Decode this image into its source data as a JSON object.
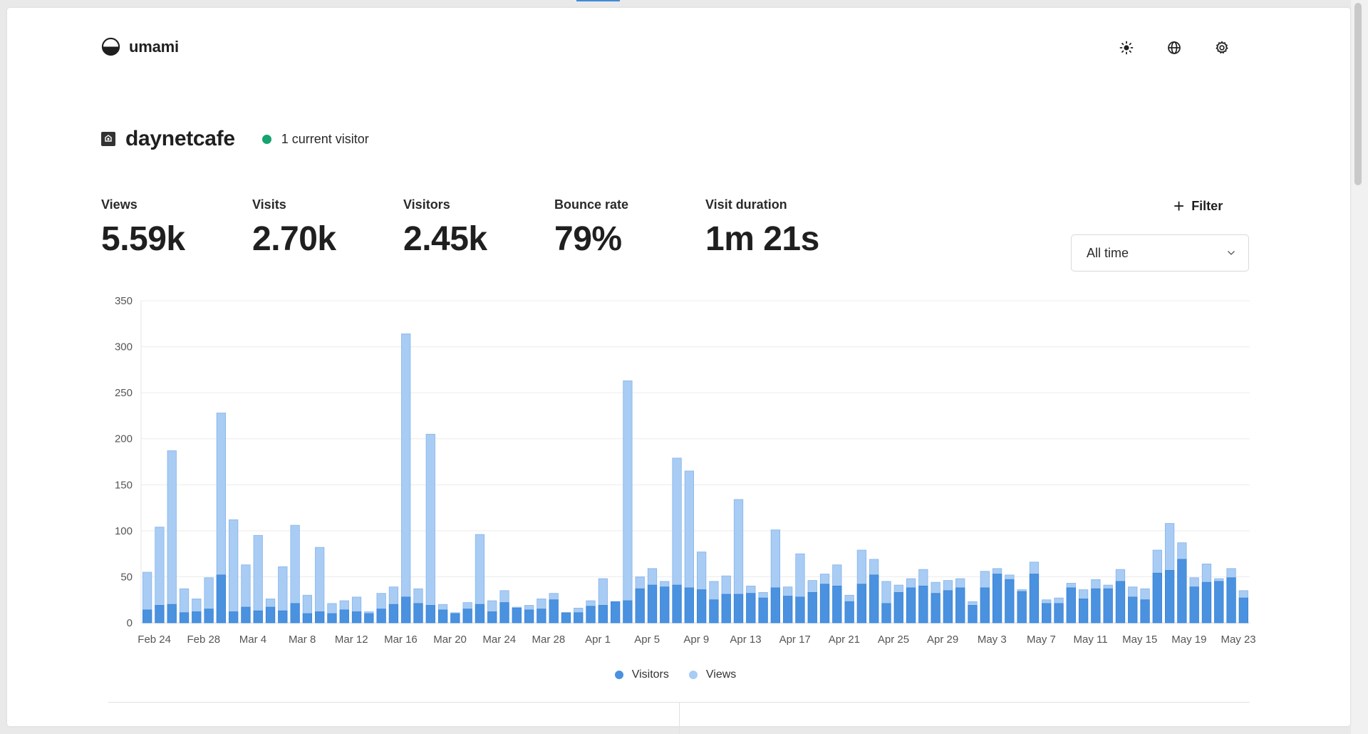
{
  "app": {
    "name": "umami"
  },
  "header": {
    "icons": [
      "sun-icon",
      "globe-icon",
      "gear-icon"
    ]
  },
  "site": {
    "name": "daynetcafe",
    "live_visitors": "1 current visitor"
  },
  "metrics": [
    {
      "label": "Views",
      "value": "5.59k"
    },
    {
      "label": "Visits",
      "value": "2.70k"
    },
    {
      "label": "Visitors",
      "value": "2.45k"
    },
    {
      "label": "Bounce rate",
      "value": "79%"
    },
    {
      "label": "Visit duration",
      "value": "1m 21s"
    }
  ],
  "filter_label": "Filter",
  "date_range": {
    "selected": "All time"
  },
  "colors": {
    "visitors": "#4a92e0",
    "views": "#a8ccf4",
    "live": "#15a36f"
  },
  "chart_data": {
    "type": "bar",
    "stacked": true,
    "ylim": [
      0,
      350
    ],
    "yticks": [
      0,
      50,
      100,
      150,
      200,
      250,
      300,
      350
    ],
    "x_tick_labels": [
      "Feb 24",
      "Feb 28",
      "Mar 4",
      "Mar 8",
      "Mar 12",
      "Mar 16",
      "Mar 20",
      "Mar 24",
      "Mar 28",
      "Apr 1",
      "Apr 5",
      "Apr 9",
      "Apr 13",
      "Apr 17",
      "Apr 21",
      "Apr 25",
      "Apr 29",
      "May 3",
      "May 7",
      "May 11",
      "May 15",
      "May 19",
      "May 23"
    ],
    "first_date": "Feb 24",
    "legend": [
      "Visitors",
      "Views"
    ],
    "legend_position": "bottom-center",
    "grid": true,
    "series": [
      {
        "name": "Visitors",
        "values": [
          14,
          19,
          20,
          11,
          12,
          15,
          52,
          12,
          17,
          13,
          17,
          13,
          21,
          10,
          12,
          10,
          14,
          12,
          10,
          15,
          20,
          28,
          21,
          19,
          14,
          10,
          15,
          20,
          12,
          22,
          16,
          14,
          15,
          25,
          11,
          11,
          18,
          19,
          23,
          24,
          37,
          41,
          39,
          41,
          38,
          36,
          25,
          31,
          31,
          32,
          27,
          38,
          29,
          28,
          33,
          42,
          40,
          23,
          42,
          52,
          21,
          33,
          38,
          40,
          32,
          35,
          38,
          19,
          38,
          53,
          47,
          34,
          53,
          21,
          21,
          38,
          26,
          37,
          37,
          45,
          28,
          25,
          54,
          57,
          69,
          39,
          44,
          45,
          49,
          27
        ]
      },
      {
        "name": "Views",
        "values": [
          55,
          104,
          187,
          37,
          26,
          49,
          228,
          112,
          63,
          95,
          26,
          61,
          106,
          30,
          82,
          21,
          24,
          28,
          12,
          32,
          39,
          314,
          37,
          205,
          20,
          11,
          22,
          96,
          24,
          35,
          17,
          19,
          26,
          32,
          11,
          16,
          24,
          48,
          23,
          263,
          50,
          59,
          45,
          179,
          165,
          77,
          45,
          51,
          134,
          40,
          33,
          101,
          39,
          75,
          46,
          53,
          63,
          30,
          79,
          69,
          45,
          41,
          48,
          58,
          44,
          46,
          48,
          23,
          56,
          59,
          52,
          36,
          66,
          25,
          27,
          43,
          36,
          47,
          41,
          58,
          39,
          37,
          79,
          108,
          87,
          49,
          64,
          48,
          59,
          35
        ]
      }
    ]
  }
}
